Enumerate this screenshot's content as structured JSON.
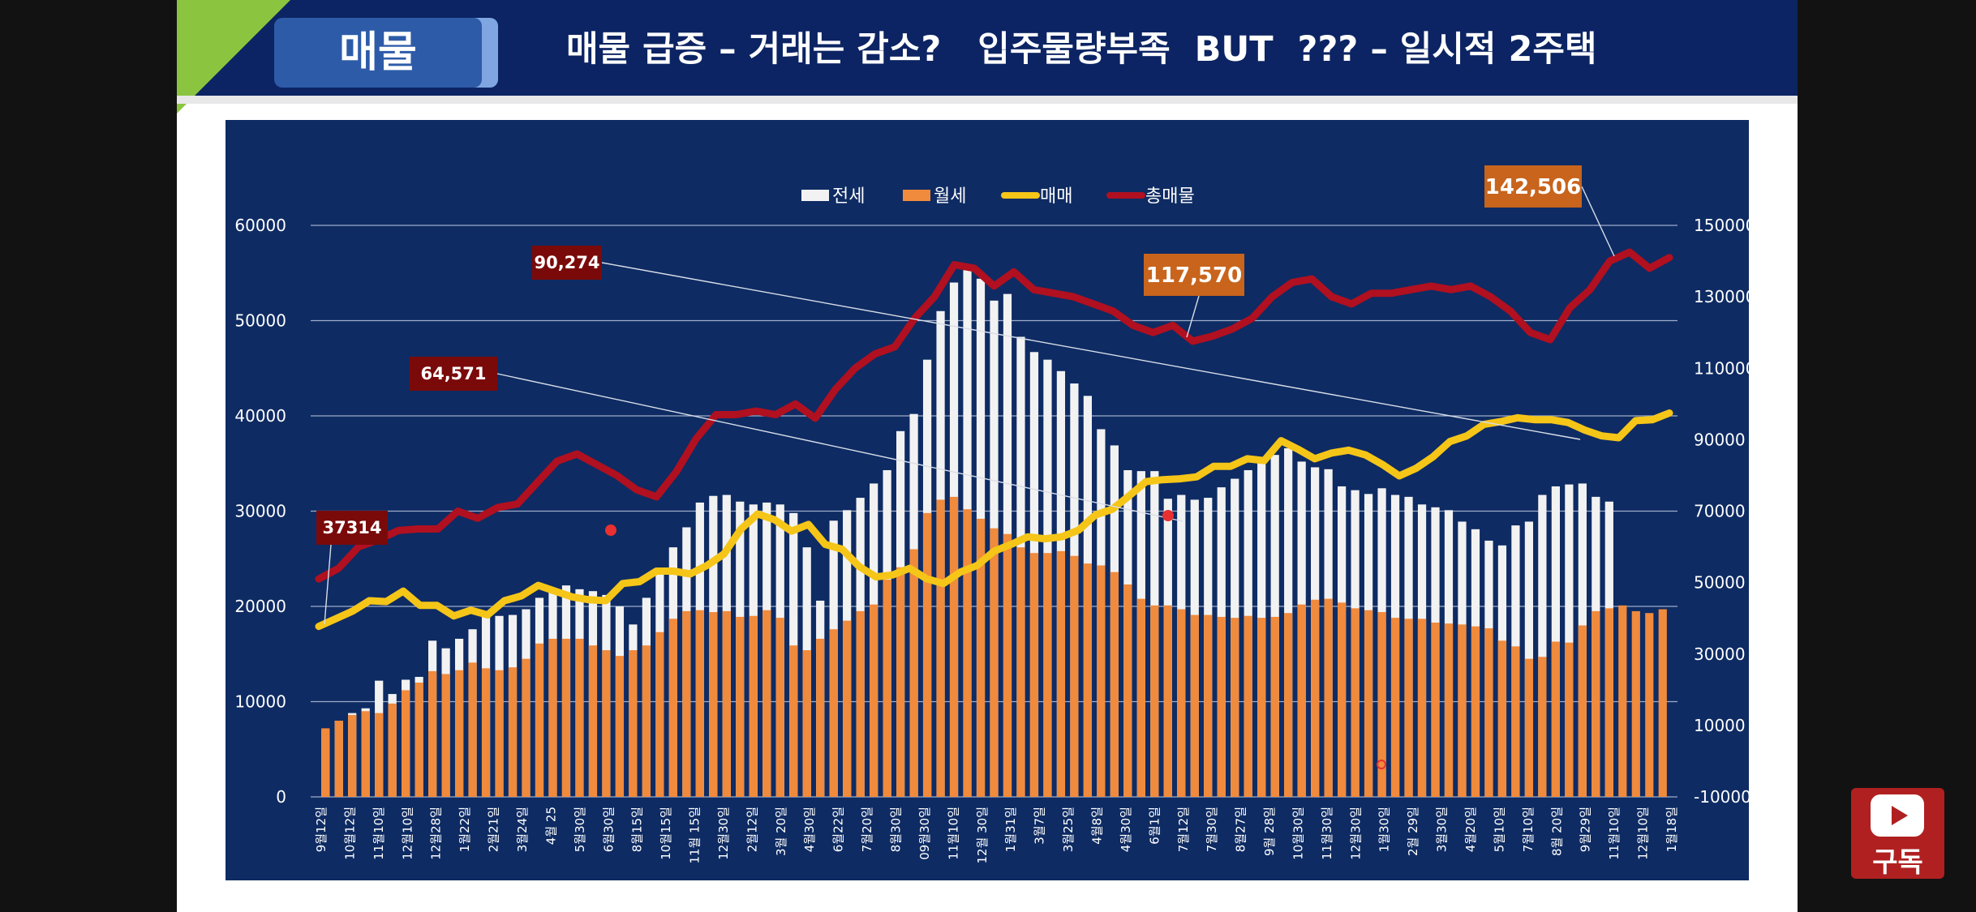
{
  "header": {
    "tag": "매물",
    "title": "매물 급증 – 거래는 감소?   입주물량부족  BUT  ??? – 일시적 2주택"
  },
  "subscribe": {
    "icon": "youtube-play-icon",
    "label": "구독"
  },
  "colors": {
    "header_bg": "#0c2463",
    "chart_bg": "#0e2b63",
    "jeonse": "#f2f2f2",
    "wolse": "#f08a3c",
    "maemae": "#f5c518",
    "total": "#b01020",
    "callout_red": "#7a0a0a",
    "callout_orange": "#c8641c"
  },
  "chart_data": {
    "type": "bar",
    "x_labels": [
      "9월12일",
      "10월12일",
      "11월10일",
      "12월10일",
      "12월28일",
      "1월22일",
      "2월21일",
      "3월24일",
      "4월 25",
      "5월30일",
      "6월30일",
      "8월15일",
      "10월15일",
      "11월 15일",
      "12월30일",
      "2월12일",
      "3월 20일",
      "4월30일",
      "6월22일",
      "7월20일",
      "8월30일",
      "09월30일",
      "11월10일",
      "12월 30일",
      "1월31일",
      "3월7일",
      "3월25일",
      "4월8일",
      "4월30일",
      "6월1일",
      "7월12일",
      "7월30일",
      "8월27일",
      "9월 28일",
      "10월30일",
      "11월30일",
      "12월30일",
      "1월30일",
      "2월 29일",
      "3월30일",
      "4월20일",
      "5월10일",
      "7월10일",
      "8월 20일",
      "9월29일",
      "11월10일",
      "12월10일",
      "1월18일"
    ],
    "legend": [
      "전세",
      "월세",
      "매매",
      "총매물"
    ],
    "series": [
      {
        "name": "전세",
        "type": "bar",
        "axis": "left",
        "values": [
          7000,
          8000,
          8800,
          9300,
          12200,
          10800,
          12300,
          12600,
          16400,
          15600,
          16600,
          17600,
          19100,
          19000,
          19100,
          19700,
          20900,
          21800,
          22200,
          21800,
          21600,
          21200,
          20000,
          18100,
          20900,
          23900,
          26200,
          28300,
          30900,
          31600,
          31700,
          31000,
          30700,
          30900,
          30700,
          29800,
          26200,
          20600,
          29000,
          30100,
          31400,
          32900,
          34300,
          38400,
          40200,
          45900,
          51000,
          54000,
          55300,
          54400,
          52100,
          52800,
          48300,
          46700,
          45900,
          44700,
          43400,
          42100,
          38600,
          36900,
          34300,
          34200,
          34200,
          31300,
          31700,
          31200,
          31400,
          32500,
          33400,
          34300,
          35400,
          35900,
          36600,
          35200,
          34600,
          34400,
          32600,
          32200,
          31800,
          32400,
          31700,
          31500,
          30700,
          30400,
          30100,
          28900,
          28100,
          26900,
          26400,
          28500,
          28900,
          31700,
          32600,
          32800,
          32900,
          31500,
          31000
        ],
        "display_note": "bars per period"
      },
      {
        "name": "월세",
        "type": "bar",
        "axis": "left",
        "values": [
          7200,
          8000,
          8600,
          9000,
          8800,
          9800,
          11200,
          12000,
          13200,
          12900,
          13300,
          14100,
          13500,
          13300,
          13600,
          14500,
          16100,
          16600,
          16600,
          16600,
          15900,
          15400,
          14800,
          15400,
          15900,
          17300,
          18700,
          19500,
          19600,
          19400,
          19500,
          18900,
          19000,
          19600,
          18800,
          15900,
          15400,
          16600,
          17600,
          18500,
          19500,
          20200,
          22800,
          24100,
          26000,
          29800,
          31200,
          31500,
          30200,
          29200,
          28200,
          27600,
          26200,
          25600,
          25600,
          25800,
          25300,
          24500,
          24300,
          23600,
          22300,
          20800,
          20100,
          20100,
          19700,
          19100,
          19100,
          18900,
          18800,
          19000,
          18800,
          18900,
          19300,
          20200,
          20700,
          20800,
          20400,
          19800,
          19600,
          19400,
          18800,
          18700,
          18700,
          18300,
          18200,
          18100,
          17900,
          17700,
          16400,
          15800,
          14500,
          14700,
          16300,
          16200,
          18000,
          19500,
          19800,
          20100,
          19500,
          19300,
          19700
        ]
      },
      {
        "name": "매매",
        "type": "line",
        "axis": "left",
        "values": [
          17900,
          18700,
          19500,
          20600,
          20500,
          21600,
          20100,
          20100,
          19000,
          19600,
          19100,
          20600,
          21100,
          22200,
          21600,
          21000,
          20700,
          20600,
          22400,
          22600,
          23700,
          23700,
          23400,
          24300,
          25500,
          28100,
          29700,
          29100,
          27900,
          28600,
          26500,
          26000,
          24200,
          23100,
          23300,
          24000,
          22900,
          22400,
          23600,
          24300,
          25800,
          26500,
          27300,
          27100,
          27300,
          28000,
          29600,
          30200,
          31600,
          33100,
          33300,
          33400,
          33600,
          34700,
          34700,
          35500,
          35300,
          37400,
          36500,
          35500,
          36100,
          36400,
          35900,
          34900,
          33700,
          34500,
          35700,
          37300,
          37900,
          39100,
          39400,
          39800,
          39600,
          39600,
          39300,
          38500,
          37900,
          37700,
          39500,
          39600,
          40300
        ],
        "note": "approximate trace"
      },
      {
        "name": "총매물",
        "type": "line",
        "axis": "right",
        "values": [
          51000,
          54000,
          60000,
          62000,
          64571,
          65000,
          65000,
          70000,
          68000,
          71000,
          72000,
          78000,
          84000,
          86000,
          83000,
          80000,
          76000,
          74000,
          81000,
          90274,
          97000,
          97000,
          98000,
          97000,
          100000,
          96000,
          104000,
          110000,
          114000,
          116000,
          124000,
          130000,
          139000,
          138000,
          133000,
          137000,
          132000,
          131000,
          130000,
          128000,
          126000,
          122000,
          120000,
          122000,
          117570,
          119000,
          121000,
          124000,
          130000,
          134000,
          135000,
          130000,
          128000,
          131000,
          131000,
          132000,
          133000,
          132000,
          133000,
          130000,
          126000,
          120000,
          118000,
          127000,
          132000,
          140000,
          142506,
          138000,
          141000
        ]
      }
    ],
    "y_left": {
      "min": 0,
      "max": 60000,
      "ticks": [
        0,
        10000,
        20000,
        30000,
        40000,
        50000,
        60000
      ]
    },
    "y_right": {
      "min": -10000,
      "max": 150000,
      "ticks": [
        -10000,
        10000,
        30000,
        50000,
        70000,
        90000,
        110000,
        130000,
        150000
      ]
    },
    "grid": true,
    "legend_placement": "top-center",
    "callouts": [
      {
        "text": "37314",
        "style": "red"
      },
      {
        "text": "64,571",
        "style": "red"
      },
      {
        "text": "90,274",
        "style": "red"
      },
      {
        "text": "117,570",
        "style": "orange"
      },
      {
        "text": "142,506",
        "style": "orange"
      }
    ]
  }
}
